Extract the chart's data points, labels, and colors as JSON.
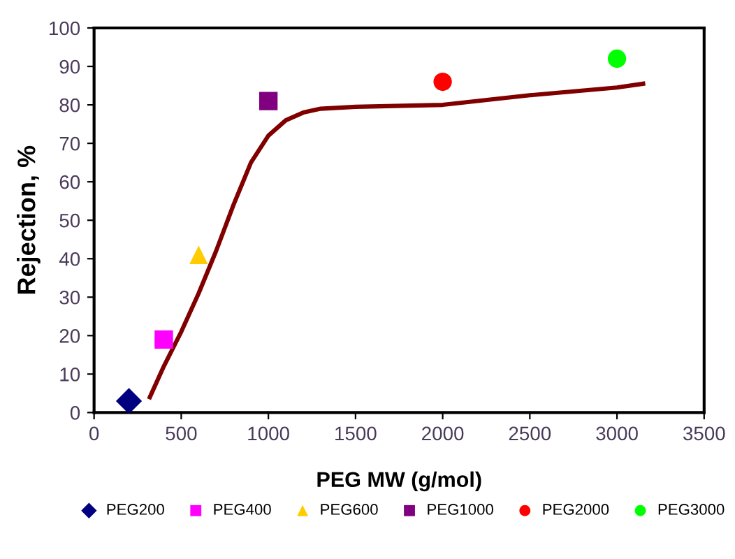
{
  "chart_data": {
    "type": "scatter",
    "xlabel": "PEG MW (g/mol)",
    "ylabel": "Rejection, %",
    "xlim": [
      0,
      3500
    ],
    "ylim": [
      0,
      100
    ],
    "xticks": [
      0,
      500,
      1000,
      1500,
      2000,
      2500,
      3000,
      3500
    ],
    "yticks": [
      0,
      10,
      20,
      30,
      40,
      50,
      60,
      70,
      80,
      90,
      100
    ],
    "grid": false,
    "legend": "bottom",
    "series": [
      {
        "name": "PEG200",
        "color": "#000080",
        "marker": "diamond",
        "x": [
          200
        ],
        "values": [
          3
        ]
      },
      {
        "name": "PEG400",
        "color": "#ff00ff",
        "marker": "square",
        "x": [
          400
        ],
        "values": [
          19
        ]
      },
      {
        "name": "PEG600",
        "color": "#ffcc00",
        "marker": "triangle",
        "x": [
          600
        ],
        "values": [
          41
        ]
      },
      {
        "name": "PEG1000",
        "color": "#800080",
        "marker": "square",
        "x": [
          1000
        ],
        "values": [
          81
        ]
      },
      {
        "name": "PEG2000",
        "color": "#ff0000",
        "marker": "circle",
        "x": [
          2000
        ],
        "values": [
          86
        ]
      },
      {
        "name": "PEG3000",
        "color": "#00ff00",
        "marker": "circle",
        "x": [
          3000
        ],
        "values": [
          92
        ]
      },
      {
        "type": "line",
        "color": "#800000",
        "line_style": "solid",
        "marker": "none",
        "x": [
          320,
          400,
          500,
          600,
          700,
          800,
          900,
          1000,
          1100,
          1200,
          1300,
          1500,
          2000,
          2200,
          2500,
          3000,
          3150
        ],
        "values": [
          4,
          12,
          21,
          31,
          42,
          54,
          65,
          72,
          76,
          78,
          79,
          79.5,
          80,
          81,
          82.5,
          84.5,
          85.5
        ]
      }
    ]
  }
}
